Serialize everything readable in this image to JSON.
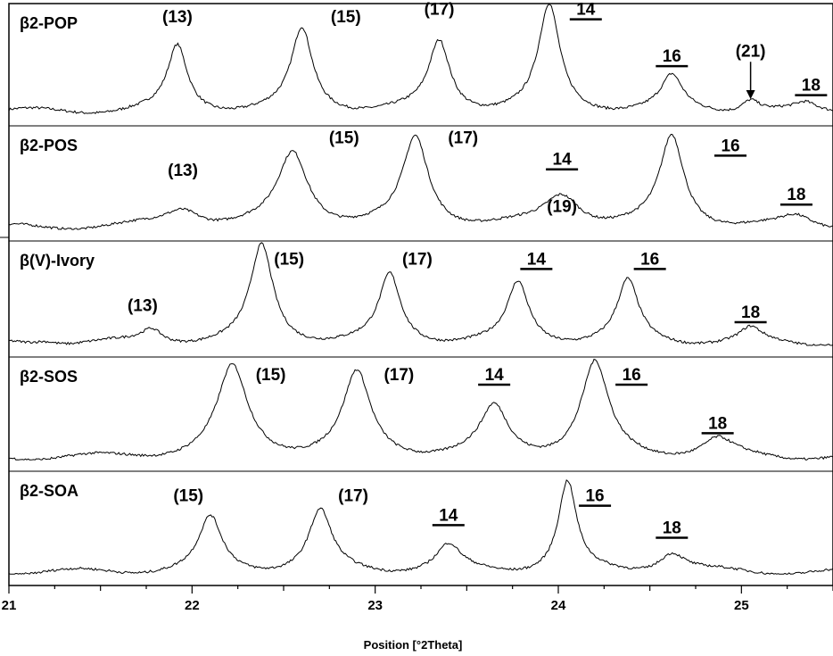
{
  "chart_data": {
    "type": "line",
    "xlabel": "Position [°2Theta]",
    "xlim": [
      21,
      25.5
    ],
    "xticks": [
      "21",
      "22",
      "23",
      "24",
      "25"
    ],
    "panels": [
      {
        "name": "β2-POP",
        "peaks": [
          {
            "x": 21.92,
            "h": 0.62,
            "w": 0.065
          },
          {
            "x": 22.6,
            "h": 0.78,
            "w": 0.07
          },
          {
            "x": 23.35,
            "h": 0.66,
            "w": 0.07
          },
          {
            "x": 23.95,
            "h": 1.0,
            "w": 0.07
          },
          {
            "x": 24.62,
            "h": 0.32,
            "w": 0.07
          },
          {
            "x": 25.05,
            "h": 0.12,
            "w": 0.06
          },
          {
            "x": 25.35,
            "h": 0.06,
            "w": 0.06
          }
        ],
        "labels": [
          {
            "text": "(13)",
            "x": 21.92,
            "level": 0.88,
            "underline": false
          },
          {
            "text": "(15)",
            "x": 22.84,
            "level": 0.88,
            "underline": false
          },
          {
            "text": "(17)",
            "x": 23.35,
            "level": 0.95,
            "underline": false
          },
          {
            "text": "14",
            "x": 24.15,
            "level": 0.95,
            "underline": true
          },
          {
            "text": "16",
            "x": 24.62,
            "level": 0.5,
            "underline": true
          },
          {
            "text": "(21)",
            "x": 25.05,
            "level": 0.55,
            "underline": false,
            "arrow": true
          },
          {
            "text": "18",
            "x": 25.38,
            "level": 0.22,
            "underline": true
          }
        ]
      },
      {
        "name": "β2-POS",
        "peaks": [
          {
            "x": 21.95,
            "h": 0.18,
            "w": 0.12
          },
          {
            "x": 22.55,
            "h": 0.75,
            "w": 0.1
          },
          {
            "x": 23.22,
            "h": 0.9,
            "w": 0.085
          },
          {
            "x": 24.02,
            "h": 0.32,
            "w": 0.12
          },
          {
            "x": 24.62,
            "h": 0.92,
            "w": 0.08
          },
          {
            "x": 25.3,
            "h": 0.1,
            "w": 0.1
          }
        ],
        "labels": [
          {
            "text": "(13)",
            "x": 21.95,
            "level": 0.55,
            "underline": false
          },
          {
            "text": "(15)",
            "x": 22.83,
            "level": 0.88,
            "underline": false
          },
          {
            "text": "(17)",
            "x": 23.48,
            "level": 0.88,
            "underline": false
          },
          {
            "text": "14",
            "x": 24.02,
            "level": 0.66,
            "underline": true
          },
          {
            "text": "(19)",
            "x": 24.02,
            "level": 0.18,
            "underline": false
          },
          {
            "text": "16",
            "x": 24.94,
            "level": 0.8,
            "underline": true
          },
          {
            "text": "18",
            "x": 25.3,
            "level": 0.3,
            "underline": true
          }
        ]
      },
      {
        "name": "β(V)-Ivory",
        "peaks": [
          {
            "x": 21.2,
            "h": 0.04,
            "w": 0.08
          },
          {
            "x": 21.78,
            "h": 0.14,
            "w": 0.07
          },
          {
            "x": 22.38,
            "h": 0.98,
            "w": 0.075
          },
          {
            "x": 23.08,
            "h": 0.68,
            "w": 0.07
          },
          {
            "x": 23.78,
            "h": 0.6,
            "w": 0.07
          },
          {
            "x": 24.38,
            "h": 0.62,
            "w": 0.07
          },
          {
            "x": 25.05,
            "h": 0.14,
            "w": 0.07
          }
        ],
        "labels": [
          {
            "text": "(13)",
            "x": 21.73,
            "level": 0.35,
            "underline": false
          },
          {
            "text": "(15)",
            "x": 22.53,
            "level": 0.82,
            "underline": false
          },
          {
            "text": "(17)",
            "x": 23.23,
            "level": 0.82,
            "underline": false
          },
          {
            "text": "14",
            "x": 23.88,
            "level": 0.82,
            "underline": true
          },
          {
            "text": "16",
            "x": 24.5,
            "level": 0.82,
            "underline": true
          },
          {
            "text": "18",
            "x": 25.05,
            "level": 0.28,
            "underline": true
          }
        ]
      },
      {
        "name": "β2-SOS",
        "peaks": [
          {
            "x": 22.22,
            "h": 0.92,
            "w": 0.1
          },
          {
            "x": 22.9,
            "h": 0.85,
            "w": 0.09
          },
          {
            "x": 23.65,
            "h": 0.5,
            "w": 0.09
          },
          {
            "x": 24.2,
            "h": 0.96,
            "w": 0.09
          },
          {
            "x": 24.87,
            "h": 0.18,
            "w": 0.1
          }
        ],
        "labels": [
          {
            "text": "(15)",
            "x": 22.43,
            "level": 0.82,
            "underline": false
          },
          {
            "text": "(17)",
            "x": 23.13,
            "level": 0.82,
            "underline": false
          },
          {
            "text": "14",
            "x": 23.65,
            "level": 0.82,
            "underline": true
          },
          {
            "text": "16",
            "x": 24.4,
            "level": 0.82,
            "underline": true
          },
          {
            "text": "18",
            "x": 24.87,
            "level": 0.32,
            "underline": true
          }
        ]
      },
      {
        "name": "β2-SOA",
        "peaks": [
          {
            "x": 22.1,
            "h": 0.55,
            "w": 0.075
          },
          {
            "x": 22.7,
            "h": 0.62,
            "w": 0.075
          },
          {
            "x": 23.4,
            "h": 0.26,
            "w": 0.08
          },
          {
            "x": 24.05,
            "h": 0.92,
            "w": 0.06
          },
          {
            "x": 24.62,
            "h": 0.2,
            "w": 0.09
          }
        ],
        "labels": [
          {
            "text": "(15)",
            "x": 21.98,
            "level": 0.75,
            "underline": false
          },
          {
            "text": "(17)",
            "x": 22.88,
            "level": 0.75,
            "underline": false
          },
          {
            "text": "14",
            "x": 23.4,
            "level": 0.55,
            "underline": true
          },
          {
            "text": "16",
            "x": 24.2,
            "level": 0.75,
            "underline": true
          },
          {
            "text": "18",
            "x": 24.62,
            "level": 0.42,
            "underline": true
          }
        ]
      }
    ]
  }
}
